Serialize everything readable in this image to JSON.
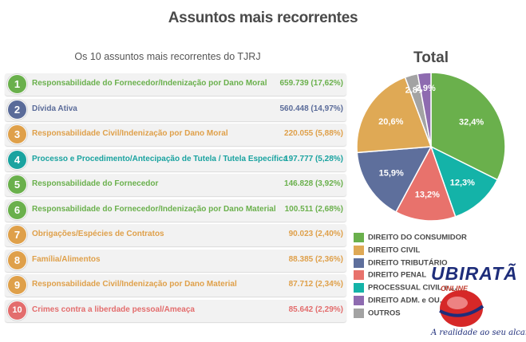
{
  "title": "Assuntos mais recorrentes",
  "ranking": {
    "title": "Os 10 assuntos mais recorrentes do TJRJ",
    "items": [
      {
        "rank": "1",
        "label": "Responsabilidade do Fornecedor/Indenização por Dano Moral",
        "value": "659.739 (17,62%)",
        "color": "#6ab04c"
      },
      {
        "rank": "2",
        "label": "Dívida Ativa",
        "value": "560.448 (14,97%)",
        "color": "#5a6b99"
      },
      {
        "rank": "3",
        "label": "Responsabilidade Civil/Indenização por Dano Moral",
        "value": "220.055 (5,88%)",
        "color": "#dfa04a"
      },
      {
        "rank": "4",
        "label": "Processo e Procedimento/Antecipação de Tutela / Tutela Específica",
        "value": "197.777 (5,28%)",
        "color": "#1aa3a0"
      },
      {
        "rank": "5",
        "label": "Responsabilidade do Fornecedor",
        "value": "146.828 (3,92%)",
        "color": "#6ab04c"
      },
      {
        "rank": "6",
        "label": "Responsabilidade do Fornecedor/Indenização por Dano Material",
        "value": "100.511 (2,68%)",
        "color": "#6ab04c"
      },
      {
        "rank": "7",
        "label": "Obrigações/Espécies de Contratos",
        "value": "90.023 (2,40%)",
        "color": "#dfa04a"
      },
      {
        "rank": "8",
        "label": "Família/Alimentos",
        "value": "88.385 (2,36%)",
        "color": "#dfa04a"
      },
      {
        "rank": "9",
        "label": "Responsabilidade Civil/Indenização por Dano Material",
        "value": "87.712 (2,34%)",
        "color": "#dfa04a"
      },
      {
        "rank": "10",
        "label": "Crimes contra a liberdade pessoal/Ameaça",
        "value": "85.642 (2,29%)",
        "color": "#e36d6d"
      }
    ]
  },
  "chart_data": {
    "type": "pie",
    "title": "Total",
    "legend_position": "bottom-left",
    "slices": [
      {
        "label": "DIREITO DO CONSUMIDOR",
        "value": 32.4,
        "display": "32,4%",
        "color": "#6ab04c"
      },
      {
        "label": "PROCESSUAL CIVIL e ...",
        "value": 12.3,
        "display": "12,3%",
        "color": "#14b3a8"
      },
      {
        "label": "DIREITO PENAL",
        "value": 13.2,
        "display": "13,2%",
        "color": "#e8726c"
      },
      {
        "label": "DIREITO TRIBUTÁRIO",
        "value": 15.9,
        "display": "15,9%",
        "color": "#5e6f9c"
      },
      {
        "label": "DIREITO CIVIL",
        "value": 20.6,
        "display": "20,6%",
        "color": "#dfa955"
      },
      {
        "label": "OUTROS",
        "value": 2.8,
        "display": "2,8%",
        "color": "#a3a3a3"
      },
      {
        "label": "DIREITO ADM. e OU...",
        "value": 2.9,
        "display": "2,9%",
        "color": "#8e6bb0"
      }
    ],
    "legend": [
      {
        "label": "DIREITO DO CONSUMIDOR",
        "color": "#6ab04c"
      },
      {
        "label": "DIREITO CIVIL",
        "color": "#dfa955"
      },
      {
        "label": "DIREITO TRIBUTÁRIO",
        "color": "#5e6f9c"
      },
      {
        "label": "DIREITO PENAL",
        "color": "#e8726c"
      },
      {
        "label": "PROCESSUAL CIVIL e ...",
        "color": "#14b3a8"
      },
      {
        "label": "DIREITO ADM. e OU...",
        "color": "#8e6bb0"
      },
      {
        "label": "OUTROS",
        "color": "#a3a3a3"
      }
    ]
  },
  "watermark": {
    "brand": "UBIRATÃ",
    "online": "ONLINE",
    "tagline": "A realidade ao seu alcance!"
  }
}
